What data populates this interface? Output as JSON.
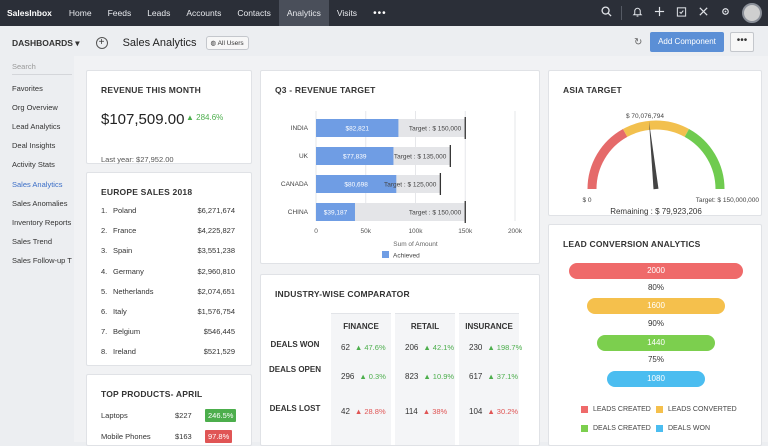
{
  "topnav": {
    "brand": "SalesInbox",
    "items": [
      "Home",
      "Feeds",
      "Leads",
      "Accounts",
      "Contacts",
      "Analytics",
      "Visits"
    ],
    "more": "•••"
  },
  "header": {
    "dashboards_label": "DASHBOARDS",
    "title": "Sales Analytics",
    "users_badge": "All Users",
    "add_component": "Add Component",
    "more": "•••"
  },
  "sidebar": {
    "search_placeholder": "Search",
    "items": [
      "Favorites",
      "Org Overview",
      "Lead Analytics",
      "Deal Insights",
      "Activity Stats",
      "Sales Analytics",
      "Sales Anomalies",
      "Inventory Reports",
      "Sales Trend",
      "Sales Follow-up Trends"
    ]
  },
  "revenue": {
    "title": "REVENUE THIS MONTH",
    "value": "$107,509.00",
    "change": "284.6%",
    "last_year": "Last year: $27,952.00"
  },
  "europe": {
    "title": "EUROPE SALES 2018",
    "rows": [
      {
        "n": "1.",
        "country": "Poland",
        "value": "$6,271,674"
      },
      {
        "n": "2.",
        "country": "France",
        "value": "$4,225,827"
      },
      {
        "n": "3.",
        "country": "Spain",
        "value": "$3,551,238"
      },
      {
        "n": "4.",
        "country": "Germany",
        "value": "$2,960,810"
      },
      {
        "n": "5.",
        "country": "Netherlands",
        "value": "$2,074,651"
      },
      {
        "n": "6.",
        "country": "Italy",
        "value": "$1,576,754"
      },
      {
        "n": "7.",
        "country": "Belgium",
        "value": "$546,445"
      },
      {
        "n": "8.",
        "country": "Ireland",
        "value": "$521,529"
      }
    ]
  },
  "products": {
    "title": "TOP PRODUCTS- APRIL",
    "rows": [
      {
        "name": "Laptops",
        "value": "$227",
        "change": "246.5%",
        "color": "#4cae4c"
      },
      {
        "name": "Mobile Phones",
        "value": "$163",
        "change": "97.8%",
        "color": "#e05555"
      }
    ]
  },
  "q3": {
    "title": "Q3 - REVENUE TARGET",
    "xlabel": "Sum of Amount",
    "legend": "Achieved",
    "chart_data": {
      "type": "bar",
      "categories": [
        "INDIA",
        "UK",
        "CANADA",
        "CHINA"
      ],
      "values": [
        82821,
        77839,
        80698,
        39187
      ],
      "value_labels": [
        "$82,821",
        "$77,839",
        "$80,698",
        "$39,187"
      ],
      "targets": [
        150000,
        135000,
        125000,
        150000
      ],
      "target_labels": [
        "Target : $ 150,000",
        "Target : $ 135,000",
        "Target : $ 125,000",
        "Target : $ 150,000"
      ],
      "ticks": [
        "0",
        "50k",
        "100k",
        "150k",
        "200k"
      ],
      "xlim": [
        0,
        200000
      ],
      "color": "#6f9de4"
    }
  },
  "asia": {
    "title": "ASIA TARGET",
    "top_label": "$ 70,076,794",
    "min_label": "$ 0",
    "max_label": "Target: $ 150,000,000",
    "remaining": "Remaining : $ 79,923,206",
    "chart_data": {
      "type": "gauge",
      "value": 70076794,
      "min": 0,
      "max": 150000000
    }
  },
  "industry": {
    "title": "INDUSTRY-WISE COMPARATOR",
    "cols": [
      "FINANCE",
      "RETAIL",
      "INSURANCE"
    ],
    "rows": [
      {
        "label": "DEALS WON",
        "cells": [
          {
            "v": "62",
            "p": "47.6%",
            "dir": "up"
          },
          {
            "v": "206",
            "p": "42.1%",
            "dir": "up"
          },
          {
            "v": "230",
            "p": "198.7%",
            "dir": "up"
          }
        ]
      },
      {
        "label": "DEALS OPEN",
        "cells": [
          {
            "v": "296",
            "p": "0.3%",
            "dir": "up"
          },
          {
            "v": "823",
            "p": "10.9%",
            "dir": "up"
          },
          {
            "v": "617",
            "p": "37.1%",
            "dir": "up"
          }
        ]
      },
      {
        "label": "DEALS LOST",
        "cells": [
          {
            "v": "42",
            "p": "28.8%",
            "dir": "down"
          },
          {
            "v": "114",
            "p": "38%",
            "dir": "down"
          },
          {
            "v": "104",
            "p": "30.2%",
            "dir": "down"
          }
        ]
      }
    ]
  },
  "lead": {
    "title": "LEAD CONVERSION ANALYTICS",
    "funnel": [
      {
        "value": "2000",
        "color": "#ef6a6a"
      },
      {
        "value": "1600",
        "color": "#f5c04c"
      },
      {
        "value": "1440",
        "color": "#7ccf4e"
      },
      {
        "value": "1080",
        "color": "#4bbdf0"
      }
    ],
    "pcts": [
      "80%",
      "90%",
      "75%"
    ],
    "legend": [
      {
        "label": "LEADS CREATED",
        "color": "#ef6a6a"
      },
      {
        "label": "LEADS CONVERTED",
        "color": "#f5c04c"
      },
      {
        "label": "DEALS CREATED",
        "color": "#7ccf4e"
      },
      {
        "label": "DEALS WON",
        "color": "#4bbdf0"
      }
    ]
  }
}
